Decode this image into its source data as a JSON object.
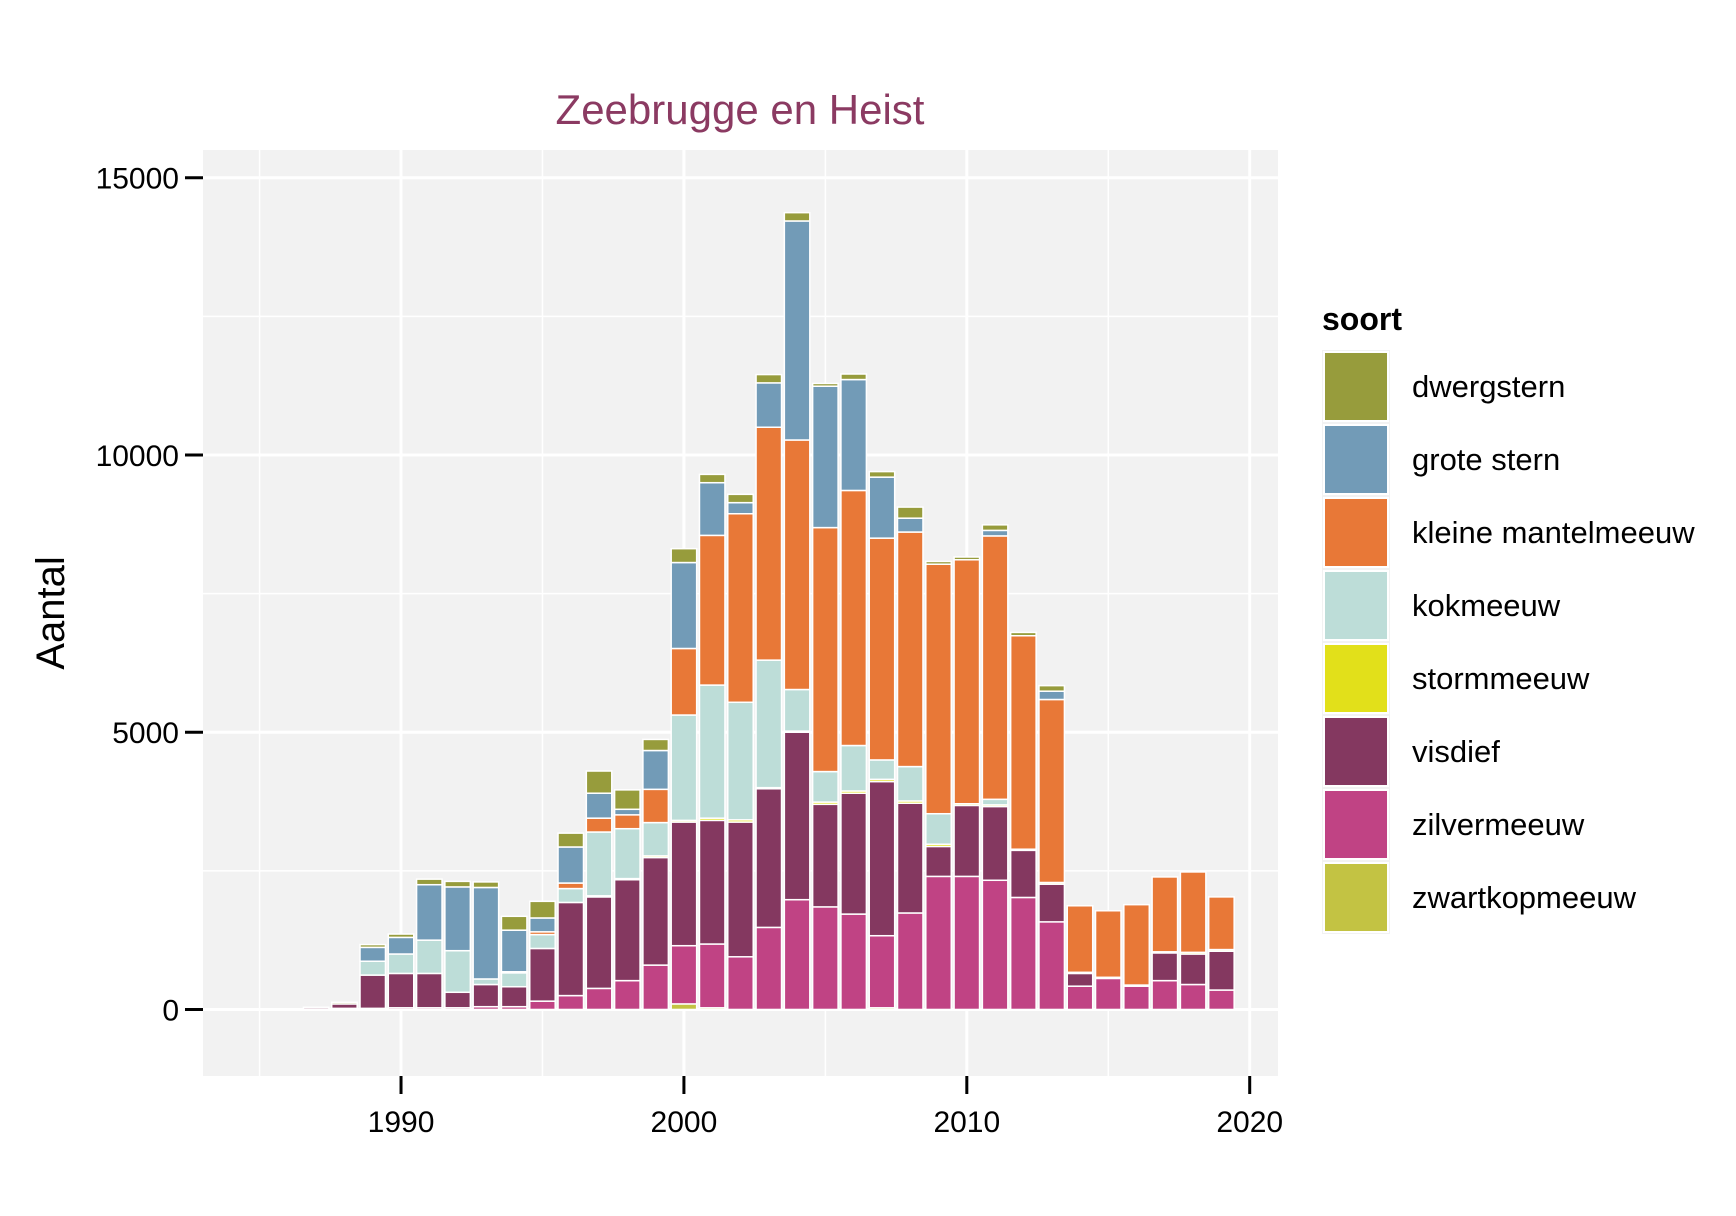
{
  "chart_data": {
    "type": "bar",
    "stacked": true,
    "title": "Zeebrugge en Heist",
    "xlabel": "",
    "ylabel": "Aantal",
    "xlim": [
      1983,
      2021
    ],
    "ylim": [
      -1200,
      15500
    ],
    "x_ticks": [
      1990,
      2000,
      2010,
      2020
    ],
    "y_ticks": [
      0,
      5000,
      10000,
      15000
    ],
    "grid": true,
    "legend_title": "soort",
    "legend_position": "right",
    "x": [
      1987,
      1988,
      1989,
      1990,
      1991,
      1992,
      1993,
      1994,
      1995,
      1996,
      1997,
      1998,
      1999,
      2000,
      2001,
      2002,
      2003,
      2004,
      2005,
      2006,
      2007,
      2008,
      2009,
      2010,
      2011,
      2012,
      2013,
      2014,
      2015,
      2016,
      2017,
      2018,
      2019
    ],
    "series": [
      {
        "name": "zwartkopmeeuw",
        "color": "#C3C343",
        "values": [
          0,
          0,
          0,
          0,
          0,
          0,
          0,
          0,
          0,
          0,
          0,
          0,
          0,
          100,
          30,
          0,
          0,
          0,
          0,
          0,
          30,
          0,
          0,
          0,
          0,
          0,
          0,
          0,
          0,
          0,
          0,
          0,
          0
        ]
      },
      {
        "name": "zilvermeeuw",
        "color": "#C04384",
        "values": [
          10,
          20,
          20,
          30,
          30,
          30,
          50,
          50,
          150,
          250,
          380,
          520,
          800,
          1050,
          1150,
          950,
          1480,
          1980,
          1850,
          1720,
          1300,
          1740,
          2400,
          2400,
          2330,
          2020,
          1580,
          420,
          560,
          420,
          520,
          450,
          350
        ]
      },
      {
        "name": "visdief",
        "color": "#843860",
        "values": [
          30,
          80,
          600,
          620,
          620,
          280,
          400,
          360,
          950,
          1680,
          1650,
          1820,
          1940,
          2230,
          2230,
          2430,
          2500,
          3020,
          1850,
          2180,
          2780,
          1980,
          540,
          1280,
          1330,
          850,
          680,
          230,
          0,
          0,
          500,
          550,
          700
        ]
      },
      {
        "name": "stormmeeuw",
        "color": "#E2E01A",
        "values": [
          0,
          0,
          0,
          0,
          0,
          0,
          0,
          0,
          0,
          0,
          20,
          20,
          30,
          30,
          40,
          40,
          20,
          20,
          40,
          40,
          40,
          40,
          40,
          30,
          30,
          20,
          30,
          20,
          20,
          20,
          20,
          30,
          30
        ]
      },
      {
        "name": "kokmeeuw",
        "color": "#BDDDD8",
        "values": [
          0,
          0,
          250,
          350,
          600,
          750,
          100,
          250,
          250,
          250,
          1150,
          900,
          600,
          1900,
          2400,
          2120,
          2300,
          750,
          550,
          820,
          350,
          620,
          550,
          0,
          100,
          0,
          0,
          0,
          0,
          0,
          0,
          0,
          0
        ]
      },
      {
        "name": "kleine mantelmeeuw",
        "color": "#E87837",
        "values": [
          0,
          0,
          0,
          0,
          0,
          0,
          0,
          20,
          50,
          100,
          250,
          250,
          600,
          1200,
          2700,
          3400,
          4200,
          4500,
          4400,
          4600,
          4000,
          4230,
          4500,
          4400,
          4750,
          3850,
          3300,
          1200,
          1200,
          1450,
          1350,
          1450,
          950
        ]
      },
      {
        "name": "grote stern",
        "color": "#729BB7",
        "values": [
          0,
          0,
          250,
          300,
          1000,
          1150,
          1650,
          750,
          250,
          650,
          450,
          100,
          700,
          1550,
          950,
          200,
          800,
          3950,
          2550,
          2000,
          1100,
          250,
          0,
          0,
          100,
          0,
          150,
          0,
          0,
          0,
          0,
          0,
          0
        ]
      },
      {
        "name": "dwergstern",
        "color": "#979C3C",
        "values": [
          0,
          30,
          50,
          60,
          100,
          100,
          100,
          250,
          300,
          250,
          400,
          350,
          200,
          250,
          150,
          150,
          150,
          150,
          50,
          100,
          100,
          200,
          50,
          50,
          100,
          60,
          100,
          0,
          0,
          0,
          0,
          0,
          0
        ]
      }
    ],
    "legend_order": [
      "dwergstern",
      "grote stern",
      "kleine mantelmeeuw",
      "kokmeeuw",
      "stormmeeuw",
      "visdief",
      "zilvermeeuw",
      "zwartkopmeeuw"
    ]
  }
}
